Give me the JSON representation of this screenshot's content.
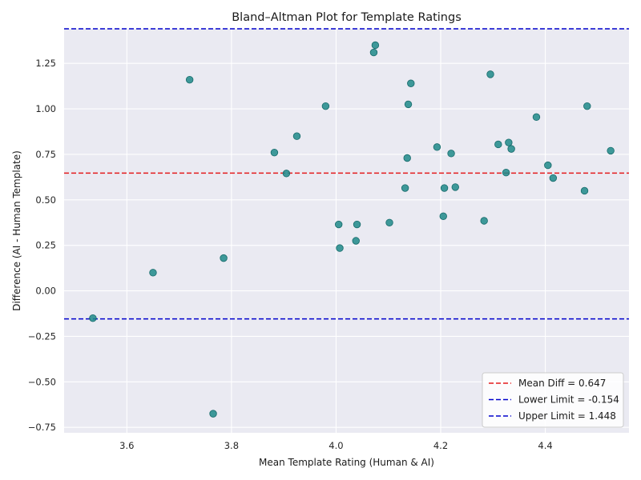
{
  "chart_data": {
    "type": "scatter",
    "title": "Bland–Altman Plot for Template Ratings",
    "xlabel": "Mean Template Rating (Human & AI)",
    "ylabel": "Difference (AI - Human Template)",
    "xlim": [
      3.48,
      4.56
    ],
    "ylim": [
      -0.78,
      1.44
    ],
    "xticks": [
      "3.6",
      "3.8",
      "4.0",
      "4.2",
      "4.4"
    ],
    "yticks": [
      "−0.75",
      "−0.50",
      "−0.25",
      "0.00",
      "0.25",
      "0.50",
      "0.75",
      "1.00",
      "1.25"
    ],
    "grid": true,
    "legend_position": "bottom-right",
    "point_color": "#1f8a8a",
    "points": [
      {
        "x": 3.535,
        "y": -0.15
      },
      {
        "x": 3.65,
        "y": 0.1
      },
      {
        "x": 3.72,
        "y": 1.16
      },
      {
        "x": 3.765,
        "y": -0.675
      },
      {
        "x": 3.785,
        "y": 0.18
      },
      {
        "x": 3.882,
        "y": 0.76
      },
      {
        "x": 3.905,
        "y": 0.645
      },
      {
        "x": 3.925,
        "y": 0.85
      },
      {
        "x": 3.98,
        "y": 1.015
      },
      {
        "x": 4.005,
        "y": 0.365
      },
      {
        "x": 4.007,
        "y": 0.235
      },
      {
        "x": 4.038,
        "y": 0.275
      },
      {
        "x": 4.04,
        "y": 0.365
      },
      {
        "x": 4.072,
        "y": 1.31
      },
      {
        "x": 4.075,
        "y": 1.35
      },
      {
        "x": 4.102,
        "y": 0.375
      },
      {
        "x": 4.132,
        "y": 0.565
      },
      {
        "x": 4.136,
        "y": 0.73
      },
      {
        "x": 4.138,
        "y": 1.025
      },
      {
        "x": 4.143,
        "y": 1.14
      },
      {
        "x": 4.193,
        "y": 0.79
      },
      {
        "x": 4.205,
        "y": 0.41
      },
      {
        "x": 4.207,
        "y": 0.565
      },
      {
        "x": 4.22,
        "y": 0.755
      },
      {
        "x": 4.228,
        "y": 0.57
      },
      {
        "x": 4.283,
        "y": 0.385
      },
      {
        "x": 4.295,
        "y": 1.19
      },
      {
        "x": 4.31,
        "y": 0.805
      },
      {
        "x": 4.325,
        "y": 0.65
      },
      {
        "x": 4.33,
        "y": 0.815
      },
      {
        "x": 4.335,
        "y": 0.78
      },
      {
        "x": 4.383,
        "y": 0.955
      },
      {
        "x": 4.405,
        "y": 0.69
      },
      {
        "x": 4.415,
        "y": 0.62
      },
      {
        "x": 4.475,
        "y": 0.55
      },
      {
        "x": 4.48,
        "y": 1.015
      },
      {
        "x": 4.525,
        "y": 0.77
      }
    ],
    "reference_lines": [
      {
        "name": "Mean Diff = 0.647",
        "y": 0.647,
        "color": "#e31a1c"
      },
      {
        "name": "Lower Limit = -0.154",
        "y": -0.154,
        "color": "#0000cc"
      },
      {
        "name": "Upper Limit = 1.448",
        "y": 1.448,
        "color": "#0000cc"
      }
    ]
  }
}
